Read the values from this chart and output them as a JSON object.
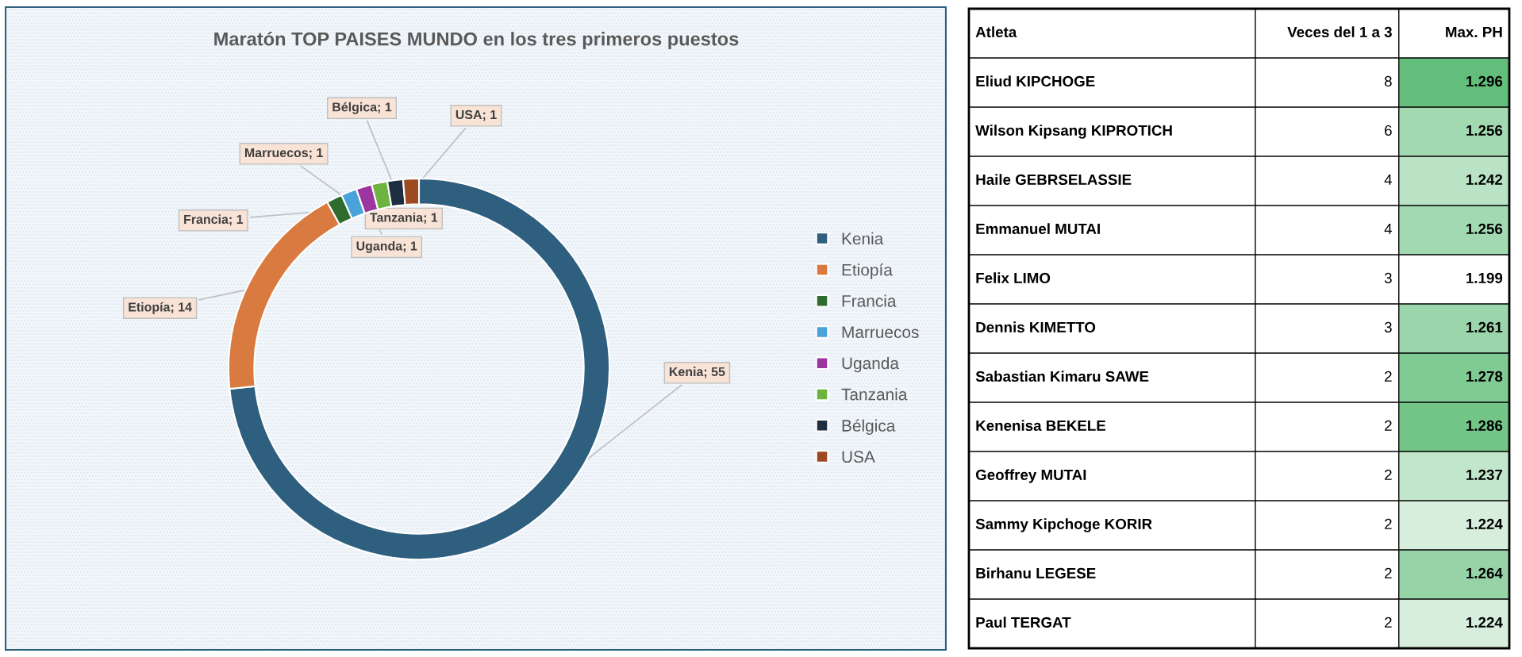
{
  "chart_data": [
    {
      "type": "donut",
      "title": "Maratón TOP PAISES MUNDO en los tres primeros puestos",
      "categories": [
        "Kenia",
        "Etiopía",
        "Francia",
        "Marruecos",
        "Uganda",
        "Tanzania",
        "Bélgica",
        "USA"
      ],
      "values": [
        55,
        14,
        1,
        1,
        1,
        1,
        1,
        1
      ],
      "colors": [
        "#2e5f7f",
        "#d97a40",
        "#2e6b2e",
        "#4aa3d8",
        "#9b35a0",
        "#6cb33f",
        "#1d2e40",
        "#9c4a1f"
      ],
      "value_labels": [
        "Kenia; 55",
        "Etiopía; 14",
        "Francia; 1",
        "Marruecos; 1",
        "Uganda; 1",
        "Tanzania; 1",
        "Bélgica; 1",
        "USA; 1"
      ],
      "legend": "right"
    },
    {
      "type": "heatmap",
      "ylabel": "Atleta",
      "data_labels": true,
      "categories": [
        "Veces del 1 a 3",
        "Max. PH"
      ],
      "y_categories": [
        "Eliud KIPCHOGE",
        "Wilson Kipsang KIPROTICH",
        "Haile GEBRSELASSIE",
        "Emmanuel MUTAI",
        "Felix LIMO",
        "Dennis KIMETTO",
        "Sabastian Kimaru SAWE",
        "Kenenisa BEKELE",
        "Geoffrey MUTAI",
        "Sammy Kipchoge KORIR",
        "Birhanu LEGESE",
        "Paul TERGAT"
      ],
      "cells": [
        [
          8,
          1.296
        ],
        [
          6,
          1.256
        ],
        [
          4,
          1.242
        ],
        [
          4,
          1.256
        ],
        [
          3,
          1.199
        ],
        [
          3,
          1.261
        ],
        [
          2,
          1.278
        ],
        [
          2,
          1.286
        ],
        [
          2,
          1.237
        ],
        [
          2,
          1.224
        ],
        [
          2,
          1.264
        ],
        [
          2,
          1.224
        ]
      ]
    }
  ]
}
